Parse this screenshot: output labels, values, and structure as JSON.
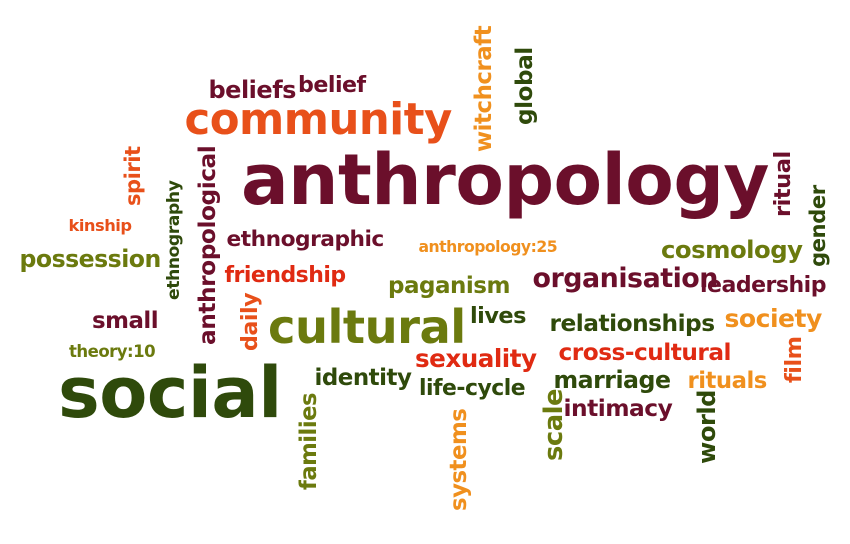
{
  "colors": {
    "maroon": "#6b0f2b",
    "orange_red": "#e8501a",
    "orange": "#f0901e",
    "olive": "#6b7a0e",
    "dark_green": "#2f4a0b",
    "red": "#e02a12"
  },
  "words": [
    {
      "text": "anthropology",
      "color": "#6b0f2b"
    },
    {
      "text": "community",
      "color": "#e8501a"
    },
    {
      "text": "social",
      "color": "#2f4a0b"
    },
    {
      "text": "cultural",
      "color": "#6b7a0e"
    },
    {
      "text": "beliefs",
      "color": "#6b0f2b"
    },
    {
      "text": "belief",
      "color": "#6b0f2b"
    },
    {
      "text": "witchcraft",
      "color": "#f0901e"
    },
    {
      "text": "global",
      "color": "#2f4a0b"
    },
    {
      "text": "spirit",
      "color": "#e8501a"
    },
    {
      "text": "ethnography",
      "color": "#2f4a0b"
    },
    {
      "text": "anthropological",
      "color": "#6b0f2b"
    },
    {
      "text": "kinship",
      "color": "#e8501a"
    },
    {
      "text": "possession",
      "color": "#6b7a0e"
    },
    {
      "text": "ethnographic",
      "color": "#6b0f2b"
    },
    {
      "text": "friendship",
      "color": "#e02a12"
    },
    {
      "text": "anthropology:25",
      "color": "#f0901e"
    },
    {
      "text": "cosmology",
      "color": "#6b7a0e"
    },
    {
      "text": "ritual",
      "color": "#6b0f2b"
    },
    {
      "text": "gender",
      "color": "#2f4a0b"
    },
    {
      "text": "organisation",
      "color": "#6b0f2b"
    },
    {
      "text": "leadership",
      "color": "#6b0f2b"
    },
    {
      "text": "paganism",
      "color": "#6b7a0e"
    },
    {
      "text": "small",
      "color": "#6b0f2b"
    },
    {
      "text": "theory:10",
      "color": "#6b7a0e"
    },
    {
      "text": "daily",
      "color": "#e8501a"
    },
    {
      "text": "lives",
      "color": "#2f4a0b"
    },
    {
      "text": "relationships",
      "color": "#2f4a0b"
    },
    {
      "text": "society",
      "color": "#f0901e"
    },
    {
      "text": "sexuality",
      "color": "#e02a12"
    },
    {
      "text": "cross-cultural",
      "color": "#e02a12"
    },
    {
      "text": "film",
      "color": "#e8501a"
    },
    {
      "text": "identity",
      "color": "#2f4a0b"
    },
    {
      "text": "life-cycle",
      "color": "#2f4a0b"
    },
    {
      "text": "marriage",
      "color": "#2f4a0b"
    },
    {
      "text": "rituals",
      "color": "#f0901e"
    },
    {
      "text": "intimacy",
      "color": "#6b0f2b"
    },
    {
      "text": "families",
      "color": "#6b7a0e"
    },
    {
      "text": "systems",
      "color": "#f0901e"
    },
    {
      "text": "scale",
      "color": "#6b7a0e"
    },
    {
      "text": "world",
      "color": "#2f4a0b"
    }
  ]
}
